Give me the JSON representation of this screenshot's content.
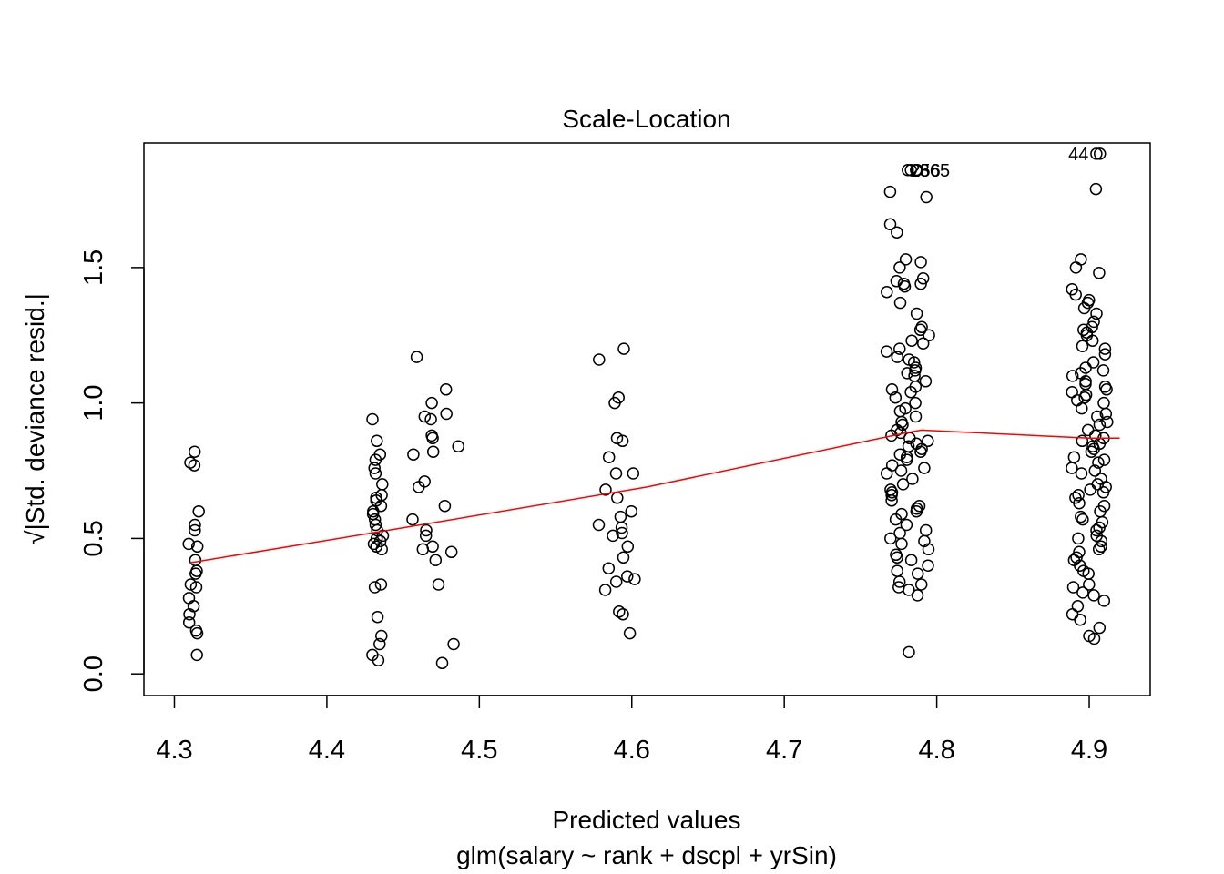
{
  "chart_data": {
    "type": "scatter",
    "title": "Scale-Location",
    "xlabel": "Predicted values",
    "xlabel_sub": "glm(salary ~ rank + dscpl + yrSin)",
    "ylabel": "√|Std. deviance resid.|",
    "xlim": [
      4.28,
      4.94
    ],
    "ylim": [
      -0.08,
      1.96
    ],
    "x_ticks": [
      {
        "value": 4.3,
        "label": "4.3"
      },
      {
        "value": 4.4,
        "label": "4.4"
      },
      {
        "value": 4.5,
        "label": "4.5"
      },
      {
        "value": 4.6,
        "label": "4.6"
      },
      {
        "value": 4.7,
        "label": "4.7"
      },
      {
        "value": 4.8,
        "label": "4.8"
      },
      {
        "value": 4.9,
        "label": "4.9"
      }
    ],
    "y_ticks": [
      {
        "value": 0.0,
        "label": "0.0"
      },
      {
        "value": 0.5,
        "label": "0.5"
      },
      {
        "value": 1.0,
        "label": "1.0"
      },
      {
        "value": 1.5,
        "label": "1.5"
      }
    ],
    "smooth_line": {
      "color": "#ff0000",
      "points": [
        [
          4.31,
          0.41
        ],
        [
          4.44,
          0.53
        ],
        [
          4.61,
          0.69
        ],
        [
          4.78,
          0.89
        ],
        [
          4.79,
          0.9
        ],
        [
          4.9,
          0.87
        ],
        [
          4.92,
          0.87
        ]
      ]
    },
    "clusters": [
      {
        "x": 4.312,
        "spread": 0.004,
        "y": [
          0.82,
          0.78,
          0.77,
          0.6,
          0.55,
          0.53,
          0.48,
          0.47,
          0.42,
          0.38,
          0.37,
          0.33,
          0.32,
          0.28,
          0.25,
          0.22,
          0.19,
          0.16,
          0.15,
          0.07
        ]
      },
      {
        "x": 4.433,
        "spread": 0.004,
        "y": [
          0.94,
          0.86,
          0.81,
          0.79,
          0.76,
          0.74,
          0.7,
          0.66,
          0.65,
          0.64,
          0.62,
          0.6,
          0.59,
          0.57,
          0.55,
          0.53,
          0.51,
          0.5,
          0.49,
          0.48,
          0.47,
          0.46,
          0.33,
          0.32,
          0.21,
          0.14,
          0.11,
          0.07,
          0.05
        ]
      },
      {
        "x": 4.472,
        "spread": 0.016,
        "y": [
          1.17,
          1.05,
          1.0,
          0.96,
          0.95,
          0.94,
          0.88,
          0.87,
          0.84,
          0.82,
          0.81,
          0.71,
          0.69,
          0.62,
          0.57,
          0.53,
          0.51,
          0.47,
          0.46,
          0.45,
          0.42,
          0.33,
          0.11,
          0.04
        ]
      },
      {
        "x": 4.59,
        "spread": 0.012,
        "y": [
          1.2,
          1.16,
          1.02,
          1.0,
          0.87,
          0.86,
          0.8,
          0.74,
          0.74,
          0.68,
          0.65,
          0.6,
          0.58,
          0.55,
          0.54,
          0.52,
          0.51,
          0.47,
          0.43,
          0.39,
          0.36,
          0.35,
          0.34,
          0.31,
          0.23,
          0.22,
          0.15
        ]
      },
      {
        "x": 4.781,
        "spread": 0.014,
        "y": [
          1.86,
          1.86,
          1.78,
          1.76,
          1.66,
          1.63,
          1.53,
          1.52,
          1.5,
          1.46,
          1.45,
          1.44,
          1.44,
          1.43,
          1.41,
          1.37,
          1.33,
          1.28,
          1.27,
          1.25,
          1.23,
          1.22,
          1.2,
          1.19,
          1.17,
          1.16,
          1.15,
          1.13,
          1.12,
          1.11,
          1.1,
          1.08,
          1.06,
          1.05,
          1.04,
          1.02,
          1.0,
          0.98,
          0.97,
          0.95,
          0.93,
          0.92,
          0.9,
          0.89,
          0.88,
          0.87,
          0.86,
          0.85,
          0.84,
          0.83,
          0.82,
          0.81,
          0.8,
          0.79,
          0.77,
          0.76,
          0.75,
          0.74,
          0.72,
          0.7,
          0.68,
          0.67,
          0.66,
          0.64,
          0.62,
          0.61,
          0.6,
          0.59,
          0.57,
          0.55,
          0.53,
          0.52,
          0.5,
          0.49,
          0.48,
          0.46,
          0.44,
          0.43,
          0.42,
          0.4,
          0.38,
          0.37,
          0.34,
          0.33,
          0.32,
          0.31,
          0.29,
          0.08
        ]
      },
      {
        "x": 4.9,
        "spread": 0.012,
        "y": [
          1.92,
          1.79,
          1.53,
          1.5,
          1.48,
          1.42,
          1.4,
          1.38,
          1.37,
          1.35,
          1.33,
          1.3,
          1.28,
          1.27,
          1.26,
          1.25,
          1.23,
          1.21,
          1.2,
          1.18,
          1.15,
          1.13,
          1.12,
          1.11,
          1.1,
          1.08,
          1.07,
          1.06,
          1.05,
          1.04,
          1.03,
          1.02,
          1.01,
          1.0,
          0.98,
          0.96,
          0.95,
          0.93,
          0.92,
          0.9,
          0.88,
          0.87,
          0.86,
          0.85,
          0.84,
          0.83,
          0.82,
          0.8,
          0.79,
          0.78,
          0.76,
          0.75,
          0.74,
          0.72,
          0.7,
          0.69,
          0.68,
          0.67,
          0.66,
          0.65,
          0.63,
          0.62,
          0.6,
          0.58,
          0.57,
          0.56,
          0.54,
          0.53,
          0.51,
          0.5,
          0.49,
          0.47,
          0.46,
          0.45,
          0.43,
          0.42,
          0.4,
          0.38,
          0.37,
          0.33,
          0.32,
          0.3,
          0.29,
          0.27,
          0.25,
          0.22,
          0.2,
          0.17,
          0.14,
          0.13
        ]
      }
    ],
    "labeled_points": [
      {
        "label": "256",
        "x": 4.7925,
        "y": 1.86
      },
      {
        "label": "365",
        "x": 4.7987,
        "y": 1.86
      },
      {
        "label": "44",
        "x": 4.893,
        "y": 1.92
      }
    ]
  }
}
